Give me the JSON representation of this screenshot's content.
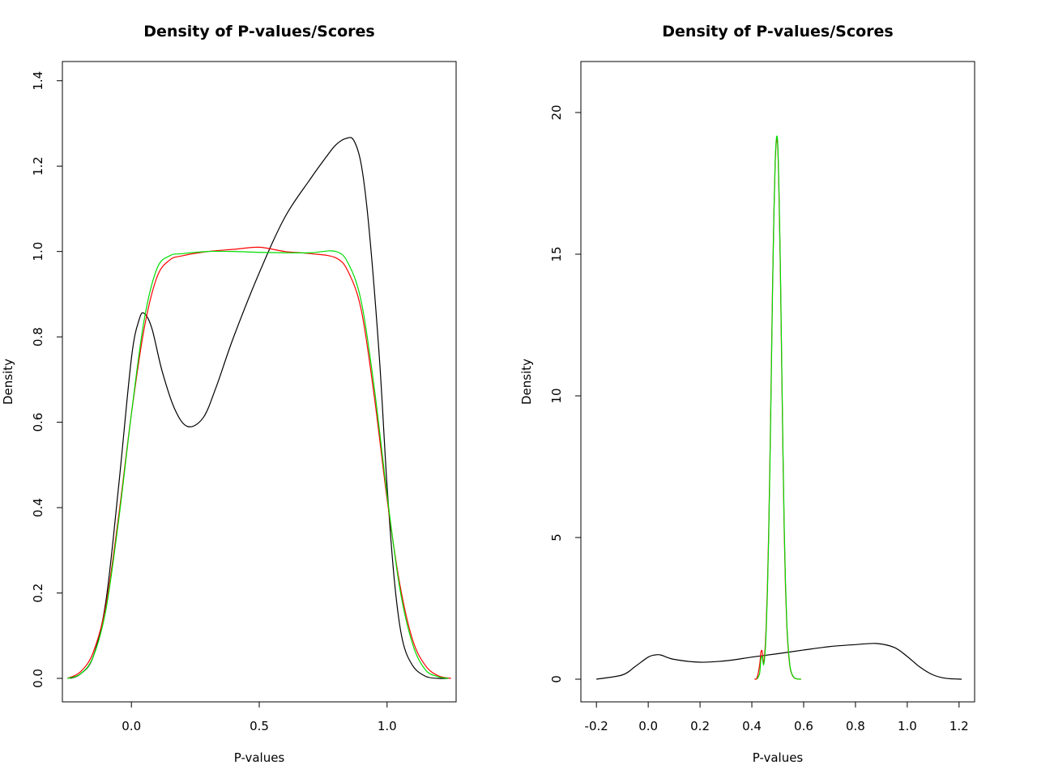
{
  "chart_data": [
    {
      "type": "line",
      "title": "Density of P-values/Scores",
      "xlabel": "P-values",
      "ylabel": "Density",
      "xlim": [
        -0.27,
        1.27
      ],
      "ylim": [
        -0.055,
        1.445
      ],
      "xticks": [
        0.0,
        0.5,
        1.0
      ],
      "xtick_labels": [
        "0.0",
        "0.5",
        "1.0"
      ],
      "yticks": [
        0.0,
        0.2,
        0.4,
        0.6,
        0.8,
        1.0,
        1.2,
        1.4
      ],
      "ytick_labels": [
        "0.0",
        "0.2",
        "0.4",
        "0.6",
        "0.8",
        "1.0",
        "1.2",
        "1.4"
      ],
      "grid": false,
      "legend": "none",
      "series": [
        {
          "color": "#000000",
          "x": [
            -0.24,
            -0.2,
            -0.15,
            -0.1,
            -0.05,
            0.0,
            0.03,
            0.05,
            0.08,
            0.12,
            0.17,
            0.22,
            0.28,
            0.33,
            0.4,
            0.5,
            0.6,
            0.7,
            0.76,
            0.8,
            0.84,
            0.87,
            0.9,
            0.93,
            0.97,
            1.0,
            1.03,
            1.06,
            1.1,
            1.15,
            1.2,
            1.24
          ],
          "y": [
            0.0,
            0.01,
            0.05,
            0.18,
            0.45,
            0.75,
            0.84,
            0.855,
            0.82,
            0.72,
            0.63,
            0.59,
            0.61,
            0.68,
            0.8,
            0.95,
            1.08,
            1.17,
            1.22,
            1.25,
            1.265,
            1.26,
            1.2,
            1.05,
            0.75,
            0.45,
            0.22,
            0.09,
            0.03,
            0.005,
            0.0,
            0.0
          ]
        },
        {
          "color": "#ff0000",
          "x": [
            -0.25,
            -0.2,
            -0.15,
            -0.1,
            -0.05,
            0.0,
            0.05,
            0.1,
            0.15,
            0.2,
            0.3,
            0.4,
            0.5,
            0.6,
            0.7,
            0.8,
            0.85,
            0.9,
            0.95,
            1.0,
            1.05,
            1.1,
            1.15,
            1.2,
            1.25
          ],
          "y": [
            0.0,
            0.015,
            0.06,
            0.17,
            0.38,
            0.62,
            0.82,
            0.94,
            0.98,
            0.99,
            1.0,
            1.005,
            1.01,
            1.0,
            0.995,
            0.985,
            0.95,
            0.86,
            0.66,
            0.42,
            0.22,
            0.09,
            0.03,
            0.006,
            0.0
          ]
        },
        {
          "color": "#00dd00",
          "x": [
            -0.25,
            -0.2,
            -0.15,
            -0.1,
            -0.05,
            0.0,
            0.05,
            0.1,
            0.15,
            0.2,
            0.3,
            0.4,
            0.5,
            0.6,
            0.7,
            0.8,
            0.85,
            0.9,
            0.95,
            1.0,
            1.05,
            1.1,
            1.15,
            1.2,
            1.24
          ],
          "y": [
            0.0,
            0.01,
            0.05,
            0.16,
            0.37,
            0.62,
            0.84,
            0.96,
            0.99,
            0.995,
            1.0,
            1.0,
            0.998,
            0.997,
            0.997,
            1.0,
            0.97,
            0.88,
            0.68,
            0.43,
            0.21,
            0.08,
            0.02,
            0.004,
            0.0
          ]
        }
      ]
    },
    {
      "type": "line",
      "title": "Density of P-values/Scores",
      "xlabel": "P-values",
      "ylabel": "Density",
      "xlim": [
        -0.26,
        1.26
      ],
      "ylim": [
        -0.8,
        21.8
      ],
      "xticks": [
        -0.2,
        0.0,
        0.2,
        0.4,
        0.6,
        0.8,
        1.0,
        1.2
      ],
      "xtick_labels": [
        "-0.2",
        "0.0",
        "0.2",
        "0.4",
        "0.6",
        "0.8",
        "1.0",
        "1.2"
      ],
      "yticks": [
        0,
        5,
        10,
        15,
        20
      ],
      "ytick_labels": [
        "0",
        "5",
        "10",
        "15",
        "20"
      ],
      "grid": false,
      "legend": "none",
      "series": [
        {
          "color": "#000000",
          "x": [
            -0.2,
            -0.1,
            -0.05,
            0.0,
            0.03,
            0.05,
            0.1,
            0.2,
            0.3,
            0.4,
            0.5,
            0.6,
            0.7,
            0.8,
            0.88,
            0.95,
            1.0,
            1.05,
            1.1,
            1.15,
            1.21
          ],
          "y": [
            0.0,
            0.15,
            0.45,
            0.78,
            0.86,
            0.85,
            0.7,
            0.6,
            0.65,
            0.78,
            0.9,
            1.03,
            1.15,
            1.22,
            1.26,
            1.12,
            0.8,
            0.42,
            0.15,
            0.03,
            0.0
          ]
        },
        {
          "color": "#ff0000",
          "x": [
            0.41,
            0.42,
            0.43,
            0.435,
            0.44,
            0.445,
            0.45,
            0.455,
            0.46,
            0.465,
            0.47,
            0.475,
            0.48,
            0.485,
            0.49,
            0.495,
            0.5,
            0.505,
            0.51,
            0.515,
            0.52,
            0.525,
            0.53,
            0.535,
            0.54,
            0.545,
            0.55,
            0.56,
            0.57,
            0.58,
            0.59
          ],
          "y": [
            0.0,
            0.05,
            0.5,
            0.95,
            0.98,
            0.55,
            0.95,
            1.8,
            3.2,
            5.2,
            7.8,
            10.8,
            13.9,
            16.4,
            18.2,
            19.0,
            18.8,
            17.0,
            14.5,
            11.2,
            8.0,
            5.2,
            3.2,
            1.9,
            1.1,
            0.6,
            0.3,
            0.08,
            0.02,
            0.005,
            0.0
          ]
        },
        {
          "color": "#00dd00",
          "x": [
            0.42,
            0.43,
            0.435,
            0.44,
            0.445,
            0.45,
            0.455,
            0.46,
            0.465,
            0.47,
            0.475,
            0.48,
            0.485,
            0.49,
            0.495,
            0.5,
            0.505,
            0.51,
            0.515,
            0.52,
            0.525,
            0.53,
            0.535,
            0.54,
            0.545,
            0.55,
            0.56,
            0.57,
            0.58,
            0.59
          ],
          "y": [
            0.0,
            0.2,
            0.7,
            0.8,
            0.5,
            0.8,
            1.6,
            3.0,
            5.0,
            7.6,
            10.6,
            13.7,
            16.3,
            18.2,
            19.1,
            18.9,
            17.2,
            14.7,
            11.4,
            8.2,
            5.4,
            3.4,
            2.0,
            1.2,
            0.65,
            0.32,
            0.09,
            0.02,
            0.004,
            0.0
          ]
        }
      ]
    }
  ]
}
